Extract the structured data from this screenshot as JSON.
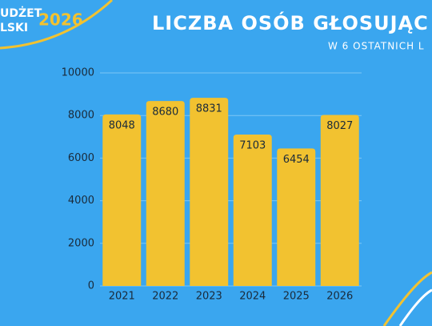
{
  "logo": {
    "line1": "UDŻET",
    "line2": "LSKI",
    "year": "2026"
  },
  "chart_data": {
    "type": "bar",
    "title": "LICZBA OSÓB GŁOSUJĄC",
    "subtitle": "W 6 OSTATNICH L",
    "categories": [
      "2021",
      "2022",
      "2023",
      "2024",
      "2025",
      "2026"
    ],
    "values": [
      8048,
      8680,
      8831,
      7103,
      6454,
      8027
    ],
    "color": "#f2c230",
    "ylim": [
      0,
      10000
    ],
    "yticks": [
      0,
      2000,
      4000,
      6000,
      8000,
      10000
    ],
    "grid": true
  }
}
